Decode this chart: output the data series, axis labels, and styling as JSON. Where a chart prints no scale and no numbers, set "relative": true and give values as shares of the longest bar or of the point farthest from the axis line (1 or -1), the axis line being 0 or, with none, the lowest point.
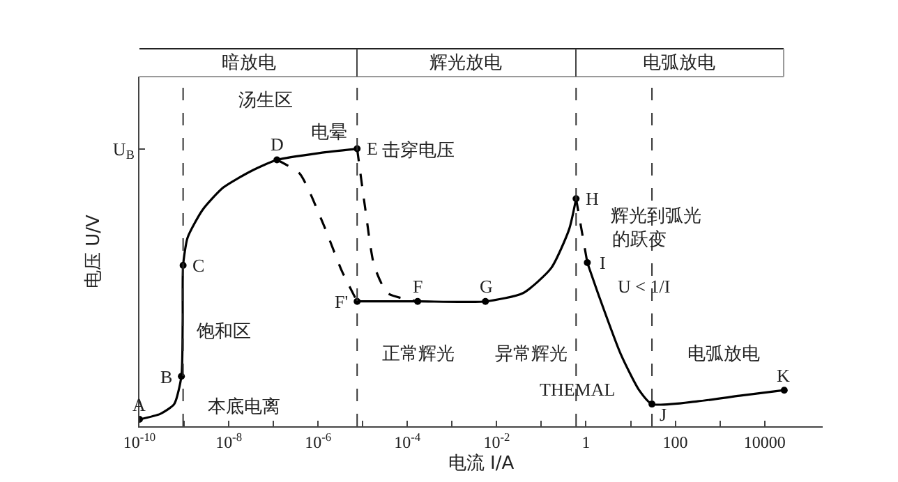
{
  "chart_data": {
    "type": "line",
    "relative": true,
    "xlabel": "电流 I/A",
    "ylabel": "电压 U/V",
    "log": "x",
    "xlim": [
      1e-10,
      200000
    ],
    "xticks": [
      {
        "value": 1e-10,
        "label": "10$^{-10}$"
      },
      {
        "value": 1e-09,
        "label": null
      },
      {
        "value": 1e-08,
        "label": "10$^{-8}$"
      },
      {
        "value": 1e-07,
        "label": null
      },
      {
        "value": 1e-06,
        "label": "10$^{-6}$"
      },
      {
        "value": 1e-05,
        "label": null
      },
      {
        "value": 0.0001,
        "label": "10$^{-4}$"
      },
      {
        "value": 0.001,
        "label": null
      },
      {
        "value": 0.01,
        "label": "10$^{-2}$"
      },
      {
        "value": 0.1,
        "label": null
      },
      1,
      {
        "value": 10,
        "label": null
      },
      100,
      {
        "value": 1000,
        "label": null
      },
      10000
    ],
    "grid": false,
    "series": [
      {
        "line_style": "solid",
        "color": "#000000",
        "x": [
          1e-10,
          2.95e-10,
          6e-10,
          8.7e-10,
          9.3e-10,
          9.5e-10,
          1.2e-09,
          2.6e-09,
          7.5e-09,
          3.2e-08,
          1.2e-07,
          1.1e-06,
          7.5e-06
        ],
        "values": [
          0.025,
          0.045,
          0.08,
          0.18,
          0.38,
          0.58,
          0.68,
          0.78,
          0.86,
          0.92,
          0.96,
          0.985,
          1.0
        ]
      },
      {
        "line_style": "dashed",
        "color": "#000000",
        "x": [
          1.2e-07,
          3.9e-07,
          1.3e-06,
          3.4e-06,
          7.5e-06
        ],
        "values": [
          0.96,
          0.91,
          0.73,
          0.56,
          0.45
        ]
      },
      {
        "line_style": "dashed",
        "color": "#000000",
        "x": [
          7.5e-06,
          1.15e-05,
          1.8e-05,
          3.6e-05,
          0.00017
        ],
        "values": [
          1.0,
          0.78,
          0.58,
          0.48,
          0.45
        ]
      },
      {
        "line_style": "solid",
        "color": "#000000",
        "x": [
          7.5e-06,
          0.00017,
          0.0056,
          0.039,
          0.166,
          0.42,
          0.6
        ],
        "values": [
          0.45,
          0.45,
          0.45,
          0.48,
          0.57,
          0.71,
          0.82
        ]
      },
      {
        "line_style": "dashed",
        "color": "#000000",
        "x": [
          0.6,
          1.07
        ],
        "values": [
          0.82,
          0.59
        ]
      },
      {
        "line_style": "solid",
        "color": "#000000",
        "x": [
          1.07,
          2.05,
          6,
          15.5,
          30,
          316,
          2750,
          27500
        ],
        "values": [
          0.59,
          0.46,
          0.26,
          0.13,
          0.08,
          0.09,
          0.11,
          0.13
        ]
      },
      {
        "type": "scatter",
        "marker": "circle",
        "color": "#000000",
        "x": [
          1e-10,
          8.7e-10,
          9.5e-10,
          1.2e-07,
          7.5e-06,
          7.5e-06,
          0.00017,
          0.0056,
          0.6,
          1.07,
          30,
          27500
        ],
        "values": [
          0.025,
          0.18,
          0.58,
          0.96,
          1.0,
          0.45,
          0.45,
          0.45,
          0.82,
          0.59,
          0.08,
          0.13
        ]
      }
    ],
    "ref_lines": [
      {
        "axis": "y",
        "value": 1,
        "label": "U$_{B}$"
      },
      {
        "axis": "x",
        "value": 9.5e-10,
        "line_style": "dashed"
      },
      {
        "axis": "x",
        "value": 7.5e-06,
        "line_style": "dashed"
      },
      {
        "axis": "x",
        "value": 0.6,
        "line_style": "dashed"
      },
      {
        "axis": "x",
        "value": 30,
        "line_style": "dashed"
      }
    ],
    "annotations": [
      {
        "text": "A",
        "x": 1e-10,
        "y": 0.025
      },
      {
        "text": "B",
        "x": 8.7e-10,
        "y": 0.18
      },
      {
        "text": "C",
        "x": 9.5e-10,
        "y": 0.58
      },
      {
        "text": "D",
        "x": 1.2e-07,
        "y": 0.96
      },
      {
        "text": "E",
        "x": 7.5e-06,
        "y": 1.0
      },
      {
        "text": "F'",
        "x": 7.5e-06,
        "y": 0.45
      },
      {
        "text": "F",
        "x": 0.00017,
        "y": 0.45
      },
      {
        "text": "G",
        "x": 0.0056,
        "y": 0.45
      },
      {
        "text": "H",
        "x": 0.6,
        "y": 0.82
      },
      {
        "text": "I",
        "x": 1.07,
        "y": 0.59
      },
      {
        "text": "J",
        "x": 30,
        "y": 0.08
      },
      {
        "text": "K",
        "x": 27500,
        "y": 0.13
      },
      "暗放电",
      "辉光放电",
      "电弧放电",
      "汤生区",
      "电晕",
      "击穿电压",
      "饱和区",
      "本底电离",
      "正常辉光",
      "异常辉光",
      "THEMAL",
      "电弧放电",
      "辉光到弧光",
      "的跃变",
      "U < 1/I"
    ]
  }
}
